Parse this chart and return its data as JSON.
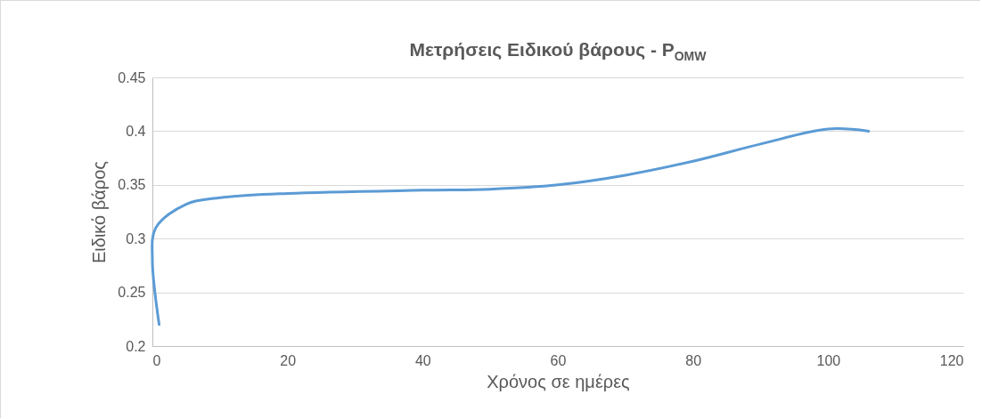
{
  "chart_data": {
    "type": "line",
    "title": "Μετρήσεις Ειδικού βάρους - P$_{OMW}$",
    "xlabel": "Χρόνος σε ημέρες",
    "ylabel": "Ειδικό βάρος",
    "x": [
      1,
      0,
      0.5,
      5,
      10,
      20,
      40,
      50,
      60,
      70,
      80,
      90,
      100,
      106
    ],
    "series": [
      {
        "color": "#5b9bd5",
        "values": [
          0.22,
          0.28,
          0.31,
          0.332,
          0.338,
          0.342,
          0.345,
          0.346,
          0.35,
          0.359,
          0.372,
          0.388,
          0.402,
          0.4
        ]
      }
    ],
    "xlim": [
      0,
      120
    ],
    "xticks": [
      0,
      20,
      40,
      60,
      80,
      100,
      120
    ],
    "ylim": [
      0.2,
      0.45
    ],
    "yticks": [
      0.2,
      0.25,
      0.3,
      0.35,
      0.4,
      0.45
    ],
    "grid": "y",
    "marker": "none",
    "line_style": "solid"
  }
}
